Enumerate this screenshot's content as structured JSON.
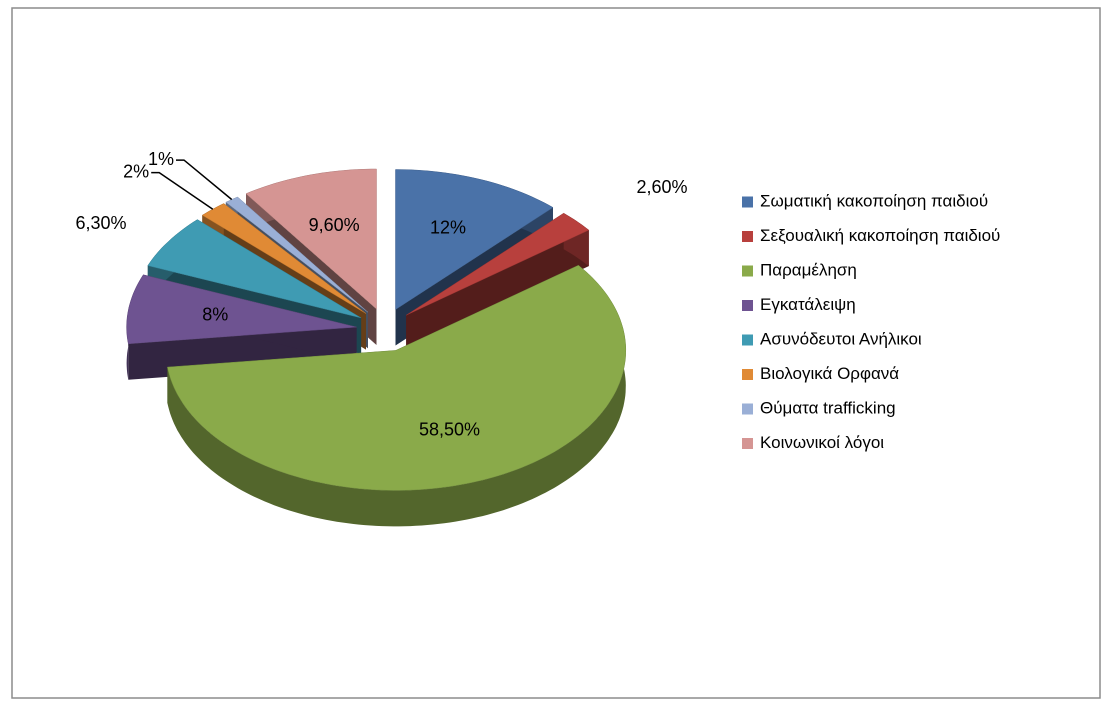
{
  "chart_data": {
    "type": "pie",
    "categories": [
      "Σωματική κακοποίηση παιδιού",
      "Σεξουαλική κακοποίηση παιδιού",
      "Παραμέληση",
      "Εγκατάλειψη",
      "Ασυνόδευτοι Ανήλικοι",
      "Βιολογικά Ορφανά",
      "Θύματα trafficking",
      "Κοινωνικοί λόγοι"
    ],
    "values": [
      12,
      2.6,
      58.5,
      8,
      6.3,
      2,
      1,
      9.6
    ],
    "value_labels": [
      "12%",
      "2,60%",
      "58,50%",
      "8%",
      "6,30%",
      "2%",
      "1%",
      "9,60%"
    ],
    "colors": [
      "#4a72a8",
      "#b8403d",
      "#8aaa4a",
      "#6e5391",
      "#3f9bb3",
      "#e08a35",
      "#9aafd6",
      "#d59593"
    ],
    "legend": "right"
  }
}
